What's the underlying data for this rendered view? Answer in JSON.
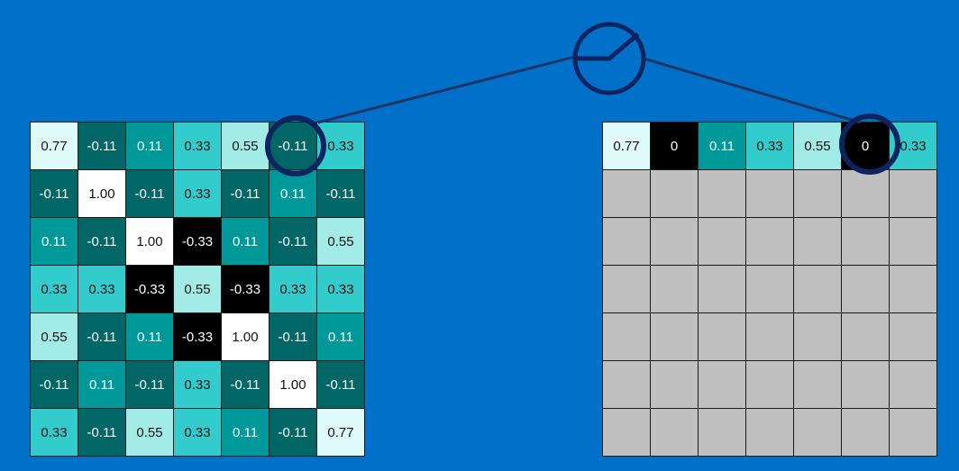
{
  "input_grid": [
    [
      "0.77",
      "-0.11",
      "0.11",
      "0.33",
      "0.55",
      "-0.11",
      "0.33"
    ],
    [
      "-0.11",
      "1.00",
      "-0.11",
      "0.33",
      "-0.11",
      "0.11",
      "-0.11"
    ],
    [
      "0.11",
      "-0.11",
      "1.00",
      "-0.33",
      "0.11",
      "-0.11",
      "0.55"
    ],
    [
      "0.33",
      "0.33",
      "-0.33",
      "0.55",
      "-0.33",
      "0.33",
      "0.33"
    ],
    [
      "0.55",
      "-0.11",
      "0.11",
      "-0.33",
      "1.00",
      "-0.11",
      "0.11"
    ],
    [
      "-0.11",
      "0.11",
      "-0.11",
      "0.33",
      "-0.11",
      "1.00",
      "-0.11"
    ],
    [
      "0.33",
      "-0.11",
      "0.55",
      "0.33",
      "0.11",
      "-0.11",
      "0.77"
    ]
  ],
  "output_grid": [
    [
      "0.77",
      "0",
      "0.11",
      "0.33",
      "0.55",
      "0",
      "0.33"
    ],
    [
      "",
      "",
      "",
      "",
      "",
      "",
      ""
    ],
    [
      "",
      "",
      "",
      "",
      "",
      "",
      ""
    ],
    [
      "",
      "",
      "",
      "",
      "",
      "",
      ""
    ],
    [
      "",
      "",
      "",
      "",
      "",
      "",
      ""
    ],
    [
      "",
      "",
      "",
      "",
      "",
      "",
      ""
    ],
    [
      "",
      "",
      "",
      "",
      "",
      "",
      ""
    ]
  ],
  "colors": {
    "background": "#0070c8",
    "highlight_ring": "#0d2461",
    "connector_line": "#1f3566"
  },
  "icons": [
    "relu-function-icon"
  ]
}
